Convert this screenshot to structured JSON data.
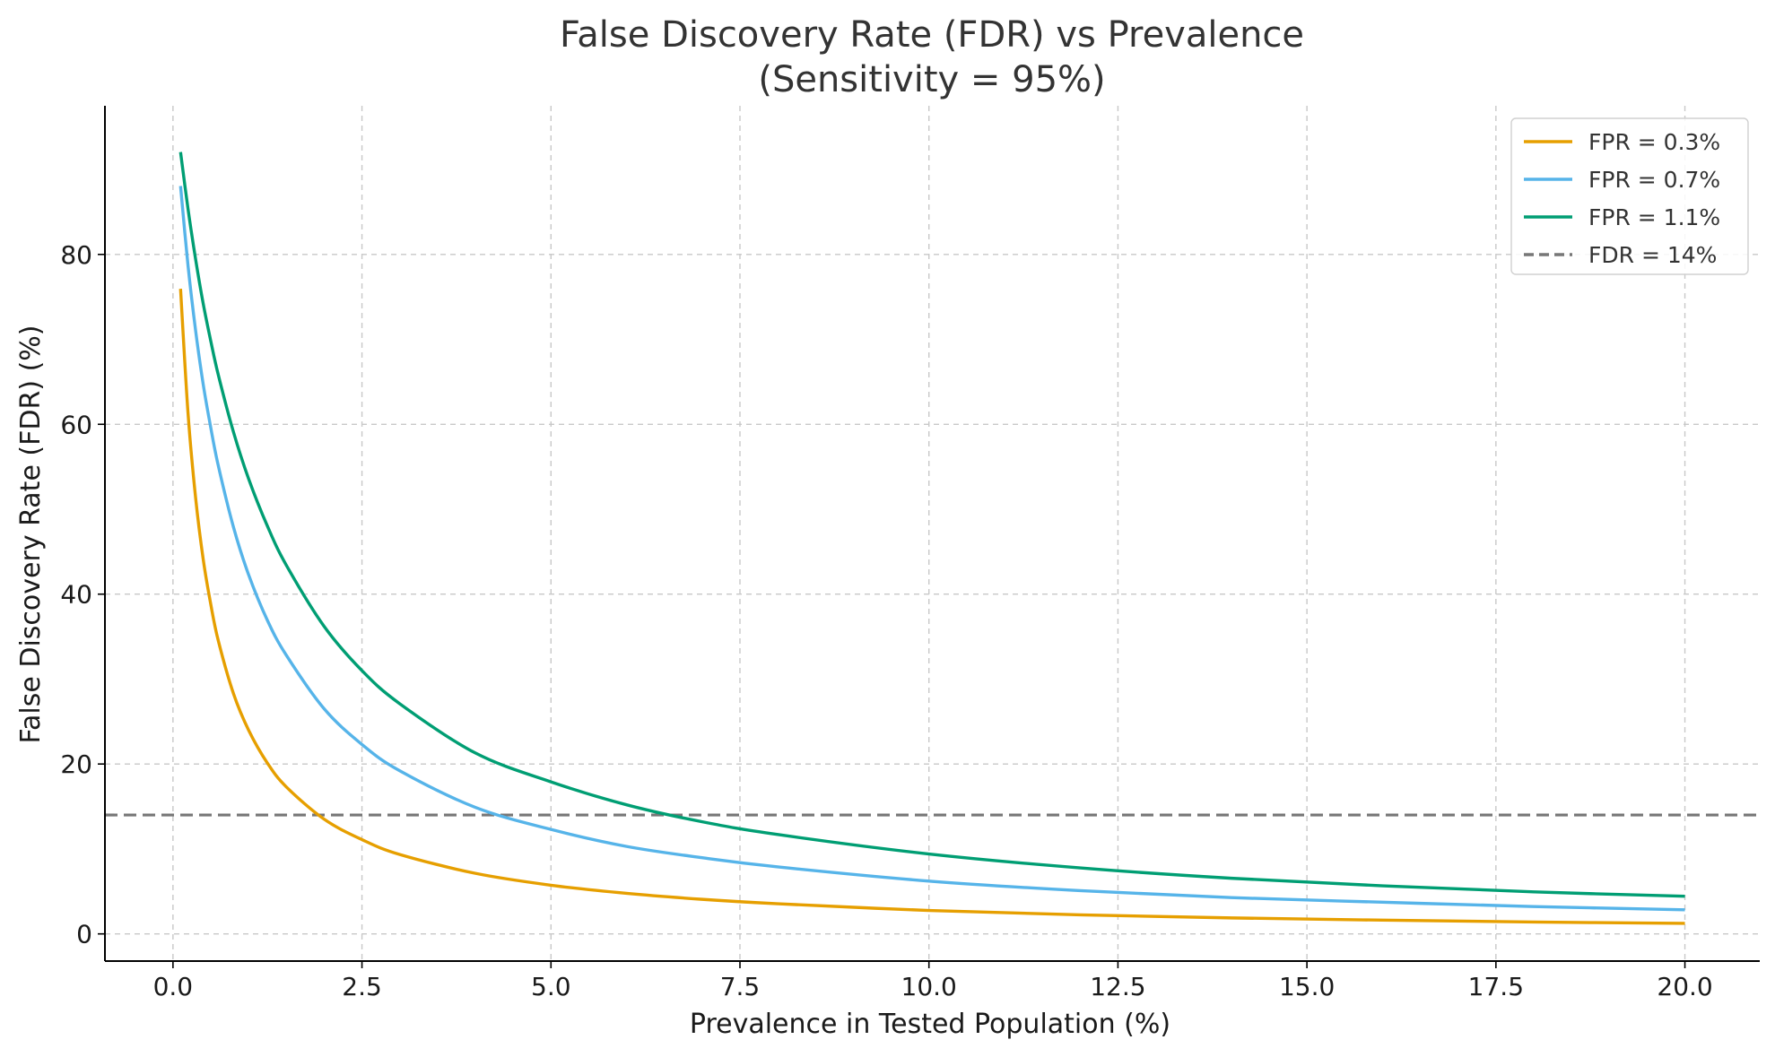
{
  "chart_data": {
    "type": "line",
    "title": "False Discovery Rate (FDR) vs Prevalence",
    "subtitle": "(Sensitivity = 95%)",
    "xlabel": "Prevalence in Tested Population (%)",
    "ylabel": "False Discovery Rate (FDR) (%)",
    "xlim": [
      -0.9,
      20.99
    ],
    "ylim": [
      -3.2,
      97.5
    ],
    "xticks": [
      0.0,
      2.5,
      5.0,
      7.5,
      10.0,
      12.5,
      15.0,
      17.5,
      20.0
    ],
    "xtick_labels": [
      "0.0",
      "2.5",
      "5.0",
      "7.5",
      "10.0",
      "12.5",
      "15.0",
      "17.5",
      "20.0"
    ],
    "yticks": [
      0,
      20,
      40,
      60,
      80
    ],
    "ytick_labels": [
      "0",
      "20",
      "40",
      "60",
      "80"
    ],
    "grid": true,
    "legend_position": "top-right",
    "x": [
      0.1,
      0.2,
      0.3,
      0.4,
      0.5,
      0.6,
      0.8,
      1.0,
      1.25,
      1.5,
      2.0,
      2.5,
      3.0,
      4.0,
      5.0,
      6.0,
      7.0,
      8.0,
      10.0,
      12.0,
      14.0,
      16.0,
      18.0,
      20.0
    ],
    "series": [
      {
        "name": "FPR = 0.3%",
        "color": "#E69F00",
        "style": "solid",
        "values": [
          75.95,
          61.2,
          51.3,
          44.1,
          38.8,
          34.5,
          28.3,
          24.0,
          20.1,
          17.3,
          13.5,
          11.1,
          9.35,
          7.13,
          5.73,
          4.77,
          4.07,
          3.55,
          2.76,
          2.24,
          1.88,
          1.62,
          1.4,
          1.24
        ]
      },
      {
        "name": "FPR = 0.7%",
        "color": "#56B4E9",
        "style": "solid",
        "values": [
          88.05,
          78.6,
          71.0,
          64.7,
          59.6,
          55.1,
          47.9,
          42.3,
          36.9,
          32.8,
          26.5,
          22.3,
          19.2,
          14.9,
          12.3,
          10.3,
          8.97,
          7.89,
          6.22,
          5.09,
          4.27,
          3.73,
          3.22,
          2.84
        ]
      },
      {
        "name": "FPR = 1.1%",
        "color": "#009E73",
        "style": "solid",
        "values": [
          92.05,
          85.3,
          79.4,
          74.2,
          69.8,
          65.8,
          59.1,
          53.6,
          48.0,
          43.4,
          36.2,
          31.0,
          27.1,
          21.3,
          17.9,
          15.2,
          13.2,
          11.7,
          9.41,
          7.77,
          6.55,
          5.66,
          4.95,
          4.43
        ]
      }
    ],
    "reference_lines": [
      {
        "name": "FDR = 14%",
        "y": 14,
        "color": "#777777",
        "style": "dashed"
      }
    ]
  }
}
